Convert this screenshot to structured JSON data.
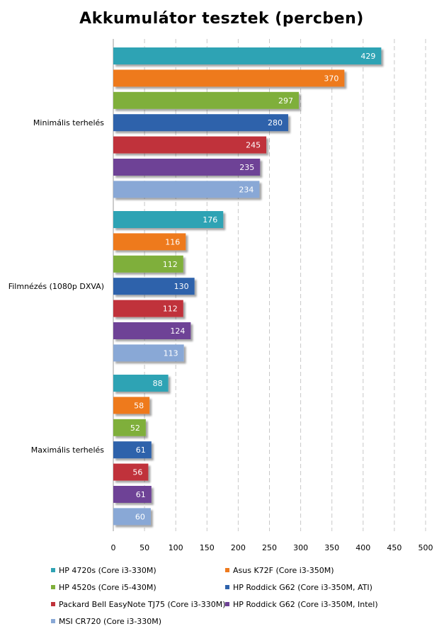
{
  "chart_data": {
    "type": "bar",
    "orientation": "horizontal",
    "title": "Akkumulátor tesztek (percben)",
    "categories": [
      "Minimális terhelés",
      "Filmnézés (1080p DXVA)",
      "Maximális terhelés"
    ],
    "series": [
      {
        "name": "HP 4720s (Core i3-330M)",
        "color": "#2fa3b4",
        "values": [
          429,
          176,
          88
        ]
      },
      {
        "name": "Asus K72F (Core i3-350M)",
        "color": "#ee7a1e",
        "values": [
          370,
          116,
          58
        ]
      },
      {
        "name": "HP 4520s (Core i5-430M)",
        "color": "#7faf3a",
        "values": [
          297,
          112,
          52
        ]
      },
      {
        "name": "HP Roddick G62 (Core i3-350M, ATI)",
        "color": "#2e62ab",
        "values": [
          280,
          130,
          61
        ]
      },
      {
        "name": "Packard Bell EasyNote  TJ75 (Core i3-330M)",
        "color": "#c0323a",
        "values": [
          245,
          112,
          56
        ]
      },
      {
        "name": "HP Roddick G62 (Core i3-350M, Intel)",
        "color": "#6e4296",
        "values": [
          235,
          124,
          61
        ]
      },
      {
        "name": "MSI CR720 (Core i3-330M)",
        "color": "#89a8d6",
        "values": [
          234,
          113,
          60
        ]
      }
    ],
    "xlim": [
      0,
      500
    ],
    "xticks": [
      0,
      50,
      100,
      150,
      200,
      250,
      300,
      350,
      400,
      450,
      500
    ],
    "grid": true,
    "legend_position": "bottom"
  }
}
